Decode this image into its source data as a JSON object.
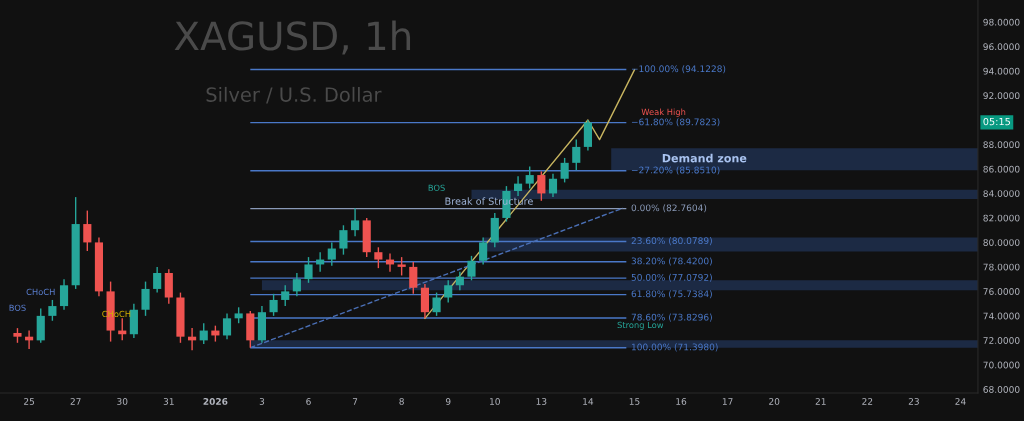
{
  "chart_data": {
    "type": "candlestick",
    "title": "XAGUSD, 1h",
    "subtitle": "Silver / U.S. Dollar",
    "categories": [
      null,
      null,
      "25",
      null,
      null,
      null,
      "27",
      null,
      null,
      null,
      "30",
      null,
      null,
      null,
      "31",
      null,
      null,
      null,
      "2026",
      null,
      null,
      null,
      "3",
      null,
      null,
      null,
      "6",
      null,
      null,
      null,
      "7",
      null,
      null,
      null,
      "8",
      null,
      null,
      null,
      "9",
      null,
      null,
      null,
      "10",
      null,
      null,
      null,
      "13",
      null,
      null,
      null,
      "14",
      null,
      null,
      null,
      "15",
      null,
      null,
      null,
      "16",
      null,
      null,
      null,
      "17",
      null,
      null,
      null,
      "20",
      null,
      null,
      null,
      "21",
      null,
      null,
      null,
      "22",
      null,
      null,
      null,
      "23",
      null,
      null,
      null,
      "24",
      null
    ],
    "ohlc": [
      null,
      [
        72.6,
        73.0,
        71.8,
        72.3
      ],
      [
        72.3,
        72.8,
        71.3,
        72.0
      ],
      [
        72.0,
        74.6,
        71.8,
        74.0
      ],
      [
        74.0,
        75.3,
        73.6,
        74.8
      ],
      [
        74.8,
        77.0,
        74.5,
        76.5
      ],
      [
        76.5,
        83.7,
        76.2,
        81.5
      ],
      [
        81.5,
        82.6,
        79.3,
        80.0
      ],
      [
        80.0,
        80.4,
        75.6,
        76.0
      ],
      [
        76.0,
        76.8,
        71.9,
        72.8
      ],
      [
        72.8,
        73.8,
        72.0,
        72.5
      ],
      [
        72.5,
        75.0,
        72.2,
        74.5
      ],
      [
        74.5,
        76.8,
        74.0,
        76.2
      ],
      [
        76.2,
        78.0,
        75.9,
        77.5
      ],
      [
        77.5,
        77.8,
        75.0,
        75.5
      ],
      [
        75.5,
        75.9,
        71.8,
        72.3
      ],
      [
        72.3,
        73.0,
        71.2,
        72.0
      ],
      [
        72.0,
        73.4,
        71.7,
        72.8
      ],
      [
        72.8,
        73.2,
        71.9,
        72.4
      ],
      [
        72.4,
        74.2,
        72.1,
        73.8
      ],
      [
        73.8,
        74.7,
        73.4,
        74.2
      ],
      [
        74.2,
        74.4,
        71.4,
        72.0
      ],
      [
        72.0,
        74.8,
        71.8,
        74.3
      ],
      [
        74.3,
        75.8,
        74.0,
        75.3
      ],
      [
        75.3,
        76.5,
        74.8,
        76.0
      ],
      [
        76.0,
        77.5,
        75.6,
        77.0
      ],
      [
        77.0,
        78.8,
        76.7,
        78.2
      ],
      [
        78.2,
        79.2,
        77.6,
        78.6
      ],
      [
        78.6,
        80.0,
        78.1,
        79.5
      ],
      [
        79.5,
        81.4,
        79.0,
        81.0
      ],
      [
        81.0,
        82.8,
        80.5,
        81.8
      ],
      [
        81.8,
        82.0,
        78.8,
        79.2
      ],
      [
        79.2,
        79.6,
        77.9,
        78.6
      ],
      [
        78.6,
        79.1,
        77.6,
        78.2
      ],
      [
        78.2,
        78.8,
        77.3,
        78.0
      ],
      [
        78.0,
        78.4,
        75.8,
        76.3
      ],
      [
        76.3,
        76.6,
        73.8,
        74.3
      ],
      [
        74.3,
        75.9,
        74.0,
        75.5
      ],
      [
        75.5,
        76.9,
        75.1,
        76.5
      ],
      [
        76.5,
        77.6,
        76.1,
        77.2
      ],
      [
        77.2,
        78.9,
        76.9,
        78.5
      ],
      [
        78.5,
        80.4,
        78.2,
        80.0
      ],
      [
        80.0,
        82.4,
        79.6,
        82.0
      ],
      [
        82.0,
        84.6,
        81.7,
        84.2
      ],
      [
        84.2,
        85.4,
        83.8,
        84.8
      ],
      [
        84.8,
        86.2,
        84.4,
        85.5
      ],
      [
        85.5,
        85.8,
        83.4,
        84.0
      ],
      [
        84.0,
        85.6,
        83.7,
        85.2
      ],
      [
        85.2,
        86.9,
        84.9,
        86.5
      ],
      [
        86.5,
        88.4,
        85.9,
        87.8
      ],
      [
        87.8,
        90.0,
        87.5,
        89.8
      ],
      null,
      null,
      null,
      null,
      null,
      null,
      null,
      null,
      null,
      null,
      null,
      null,
      null,
      null,
      null,
      null,
      null,
      null,
      null,
      null,
      null,
      null,
      null,
      null,
      null,
      null,
      null,
      null,
      null,
      null,
      null,
      null,
      null
    ],
    "colors": [
      null,
      "#ef5350",
      "#ef5350",
      "#26a69a",
      "#26a69a",
      "#26a69a",
      "#26a69a",
      "#ef5350",
      "#ef5350",
      "#ef5350",
      "#ef5350",
      "#26a69a",
      "#26a69a",
      "#26a69a",
      "#ef5350",
      "#ef5350",
      "#ef5350",
      "#26a69a",
      "#ef5350",
      "#26a69a",
      "#26a69a",
      "#ef5350",
      "#26a69a",
      "#26a69a",
      "#26a69a",
      "#26a69a",
      "#26a69a",
      "#26a69a",
      "#26a69a",
      "#26a69a",
      "#26a69a",
      "#ef5350",
      "#ef5350",
      "#ef5350",
      "#ef5350",
      "#ef5350",
      "#ef5350",
      "#26a69a",
      "#26a69a",
      "#26a69a",
      "#26a69a",
      "#26a69a",
      "#26a69a",
      "#26a69a",
      "#26a69a",
      "#26a69a",
      "#ef5350",
      "#26a69a",
      "#26a69a",
      "#26a69a",
      "#26a69a",
      null,
      null,
      null,
      null,
      null,
      null,
      null,
      null,
      null,
      null,
      null,
      null,
      null,
      null,
      null,
      null,
      null,
      null,
      null,
      null,
      null,
      null,
      null,
      null,
      null,
      null,
      null,
      null,
      null,
      null,
      null,
      null,
      null
    ],
    "series": [
      {
        "type": "line",
        "color": "#c8b560",
        "line_style": "solid",
        "values": [
          null,
          null,
          null,
          null,
          null,
          null,
          null,
          null,
          null,
          null,
          null,
          null,
          null,
          null,
          null,
          null,
          null,
          null,
          null,
          null,
          null,
          null,
          null,
          null,
          null,
          null,
          null,
          null,
          null,
          null,
          null,
          null,
          null,
          null,
          null,
          null,
          73.8,
          null,
          null,
          null,
          null,
          null,
          null,
          null,
          null,
          null,
          null,
          null,
          null,
          null,
          90.0,
          88.4,
          null,
          null,
          94.1,
          null,
          null,
          null,
          null,
          null,
          null,
          null,
          null,
          null,
          null,
          null,
          null,
          null,
          null,
          null,
          null,
          null,
          null,
          null,
          null,
          null,
          null,
          null,
          null,
          null,
          null,
          null,
          null,
          null
        ]
      },
      {
        "type": "line",
        "color": "#4a6fb5",
        "line_style": "dashed",
        "values": [
          null,
          null,
          null,
          null,
          null,
          null,
          null,
          null,
          null,
          null,
          null,
          null,
          null,
          null,
          null,
          null,
          null,
          null,
          null,
          null,
          null,
          71.4,
          null,
          null,
          null,
          null,
          null,
          null,
          null,
          null,
          null,
          null,
          null,
          null,
          null,
          null,
          null,
          null,
          null,
          null,
          null,
          null,
          null,
          null,
          null,
          null,
          null,
          null,
          null,
          null,
          null,
          null,
          null,
          82.8,
          null,
          null,
          null,
          null,
          null,
          null,
          null,
          null,
          null,
          null,
          null,
          null,
          null,
          null,
          null,
          null,
          null,
          null,
          null,
          null,
          null,
          null,
          null,
          null,
          null,
          null,
          null,
          null,
          null,
          null
        ]
      }
    ],
    "ylim": [
      67.7,
      99.8
    ],
    "yticks": [
      {
        "value": 68,
        "label": "68.0000"
      },
      {
        "value": 70,
        "label": "70.0000"
      },
      {
        "value": 72,
        "label": "72.0000"
      },
      {
        "value": 74,
        "label": "74.0000"
      },
      {
        "value": 76,
        "label": "76.0000"
      },
      {
        "value": 78,
        "label": "78.0000"
      },
      {
        "value": 80,
        "label": "80.0000"
      },
      {
        "value": 82,
        "label": "82.0000"
      },
      {
        "value": 84,
        "label": "84.0000"
      },
      {
        "value": 86,
        "label": "86.0000"
      },
      {
        "value": 88,
        "label": "88.0000"
      },
      {
        "value": 92,
        "label": "92.0000"
      },
      {
        "value": 94,
        "label": "94.0000"
      },
      {
        "value": 96,
        "label": "96.0000"
      },
      {
        "value": 98,
        "label": "98.0000"
      }
    ],
    "ref_lines": [
      {
        "axis": "y",
        "value": 94.1228,
        "label": "−100.00% (94.1228)",
        "color": "#4a78c8"
      },
      {
        "axis": "y",
        "value": 89.7823,
        "label": "−61.80% (89.7823)",
        "color": "#4a78c8"
      },
      {
        "axis": "y",
        "value": 85.851,
        "label": "−27.20% (85.8510)",
        "color": "#4a78c8"
      },
      {
        "axis": "y",
        "value": 82.7604,
        "label": "0.00% (82.7604)",
        "color": "#8a9ab8"
      },
      {
        "axis": "y",
        "value": 80.0789,
        "label": "23.60% (80.0789)",
        "color": "#4a78c8"
      },
      {
        "axis": "y",
        "value": 78.42,
        "label": "38.20% (78.4200)",
        "color": "#4a78c8"
      },
      {
        "axis": "y",
        "value": 77.0792,
        "label": "50.00% (77.0792)",
        "color": "#4a78c8"
      },
      {
        "axis": "y",
        "value": 75.7384,
        "label": "61.80% (75.7384)",
        "color": "#4a78c8"
      },
      {
        "axis": "y",
        "value": 73.8296,
        "label": "78.60% (73.8296)",
        "color": "#4a78c8"
      },
      {
        "axis": "y",
        "value": 71.398,
        "label": "100.00% (71.3980)",
        "color": "#4a78c8"
      }
    ],
    "bands": [
      {
        "axis": "y",
        "from": 85.9,
        "to": 87.7,
        "label": "Demand zone",
        "color": "#1e2d4a"
      },
      {
        "axis": "y",
        "from": 83.55,
        "to": 84.3,
        "color": "#1e2d4a"
      },
      {
        "axis": "y",
        "from": 79.25,
        "to": 80.4,
        "color": "#1e2d4a"
      },
      {
        "axis": "y",
        "from": 76.1,
        "to": 76.9,
        "color": "#1e2d4a"
      },
      {
        "axis": "y",
        "from": 71.4,
        "to": 72.0,
        "color": "#1e2d4a"
      }
    ],
    "annotations": [
      "Break of Structure",
      "BOS",
      "Weak High",
      "Strong Low",
      "CHoCH",
      "CHoCH",
      "BOS",
      "05:15"
    ],
    "grid": false,
    "legend": false
  }
}
